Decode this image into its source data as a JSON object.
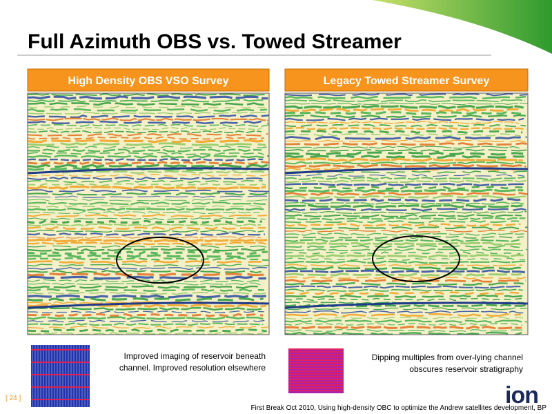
{
  "header": {
    "title": "Full Azimuth OBS vs. Towed Streamer"
  },
  "panels": [
    {
      "heading": "High Density OBS VSO Survey",
      "caption": [
        "Improved imaging of reservoir beneath",
        "channel.  Improved resolution elsewhere"
      ]
    },
    {
      "heading": "Legacy Towed Streamer Survey",
      "caption": [
        "Dipping multiples from over-lying channel",
        "obscures reservoir stratigraphy"
      ]
    }
  ],
  "footer": {
    "page": "[ 24 ]",
    "citation": "First Break Oct 2010, Using high-density OBC to optimize the Andrew satellites development, BP",
    "logo": "ion"
  }
}
